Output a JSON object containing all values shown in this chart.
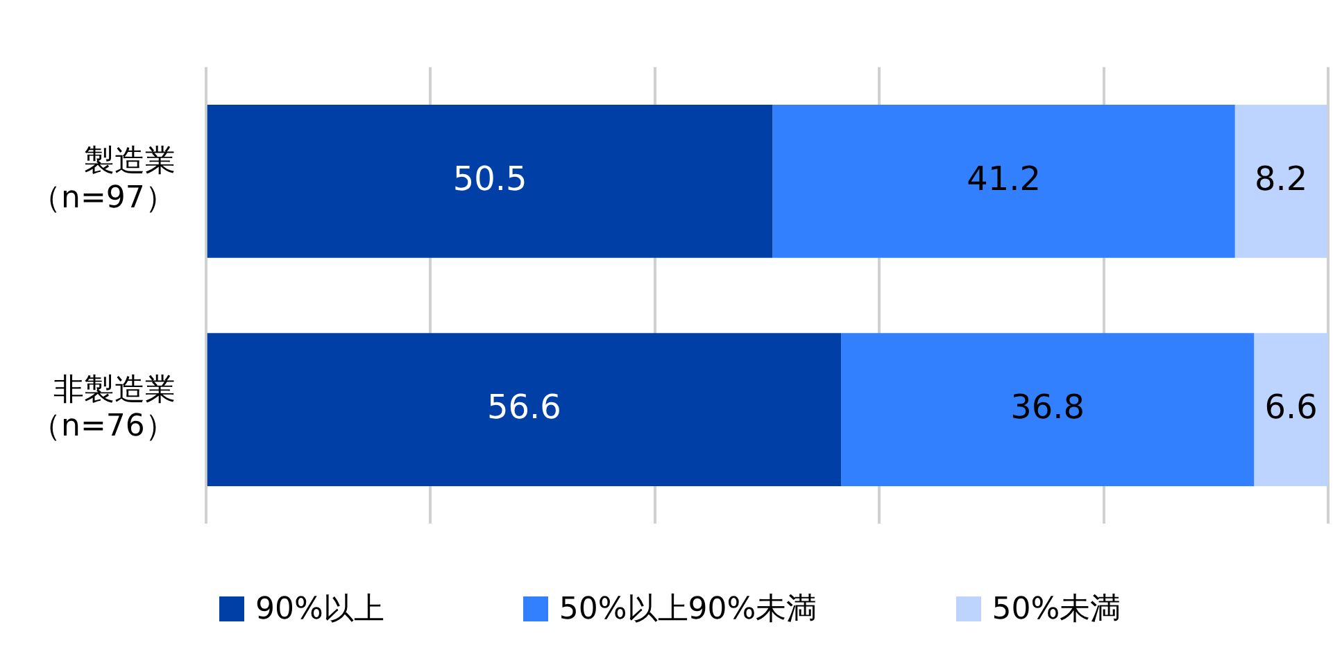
{
  "chart_data": {
    "type": "bar",
    "orientation": "horizontal",
    "stacked": true,
    "categories": [
      "製造業（n=97）",
      "非製造業（n=76）"
    ],
    "series": [
      {
        "name": "90%以上",
        "color": "#003fa5",
        "values": [
          50.5,
          56.6
        ]
      },
      {
        "name": "50%以上90%未満",
        "color": "#3380ff",
        "values": [
          41.2,
          36.8
        ]
      },
      {
        "name": "50%未満",
        "color": "#bcd4ff",
        "values": [
          8.2,
          6.6
        ]
      }
    ],
    "xlim": [
      0,
      100
    ],
    "xticks": [
      {
        "value": 0,
        "label": null
      },
      {
        "value": 20,
        "label": null
      },
      {
        "value": 40,
        "label": null
      },
      {
        "value": 60,
        "label": null
      },
      {
        "value": 80,
        "label": null
      },
      {
        "value": 100,
        "label": null
      }
    ],
    "tick_labels": "y",
    "grid": "x",
    "legend": "bottom",
    "data_labels": true
  }
}
